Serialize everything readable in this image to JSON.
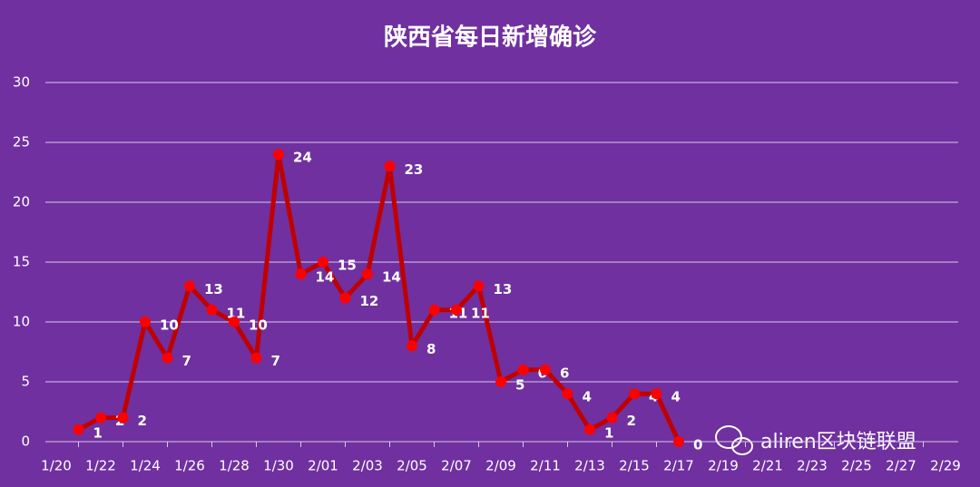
{
  "chart_data": {
    "type": "line",
    "title": "陕西省每日新增确诊",
    "categories": [
      "1/20",
      null,
      "1/22",
      null,
      "1/24",
      null,
      "1/26",
      null,
      "1/28",
      null,
      "1/30",
      null,
      "2/01",
      null,
      "2/03",
      null,
      "2/05",
      null,
      "2/07",
      null,
      "2/09",
      null,
      "2/11",
      null,
      "2/13",
      null,
      "2/15",
      null,
      "2/17",
      null,
      "2/19",
      null,
      "2/21",
      null,
      "2/23",
      null,
      "2/25",
      null,
      "2/27",
      null,
      "2/29"
    ],
    "series": [
      {
        "name": null,
        "color": "#c00000",
        "marker_color": "#ff0000",
        "values": [
          null,
          1,
          2,
          2,
          10,
          7,
          13,
          11,
          10,
          7,
          24,
          14,
          15,
          12,
          14,
          23,
          8,
          11,
          11,
          13,
          5,
          6,
          6,
          4,
          1,
          2,
          4,
          4,
          0,
          null,
          null,
          null,
          null,
          null,
          null,
          null,
          null,
          null,
          null,
          null,
          null
        ]
      }
    ],
    "ylim": [
      0,
      30
    ],
    "yticks": [
      0,
      5,
      10,
      15,
      20,
      25,
      30
    ],
    "grid": true,
    "watermark": "aliren区块链联盟"
  }
}
